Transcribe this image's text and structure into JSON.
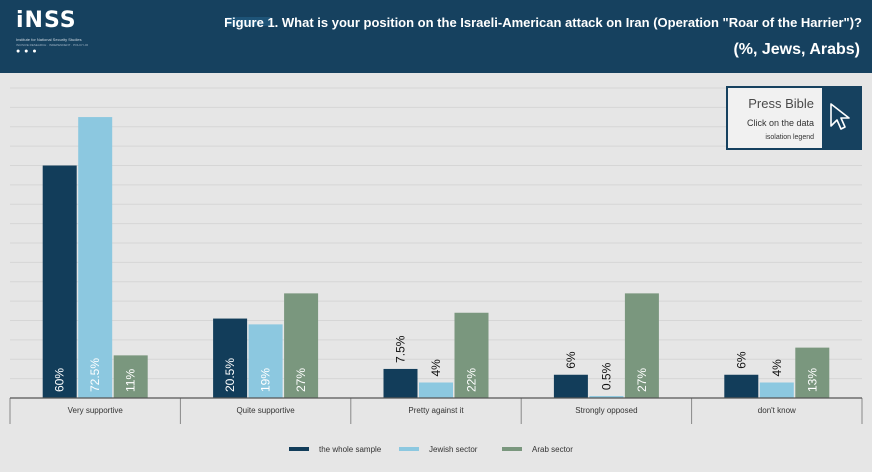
{
  "header": {
    "logo_text": "iNSS",
    "logo_subtitle": "Institute for National Security Studies",
    "logo_tagline": "INCISIVE RESEARCH · INDEPENDENT · POLICY-ORIENTED",
    "logo_icons": "● ● ●",
    "title": "Figure 1. What is your position on the Israeli-American attack on Iran (Operation \"Roar of the Harrier\")?",
    "subtitle": "(%, Jews, Arabs)"
  },
  "press_box": {
    "title": "Press Bible",
    "line1": "Click on the data",
    "line2": "isolation legend"
  },
  "colors": {
    "header_bg": "#16415f",
    "whole_sample": "#123d5a",
    "jewish_sector": "#8cc8e0",
    "arab_sector": "#7a977e"
  },
  "chart_data": {
    "type": "bar",
    "title": "Figure 1. What is your position on the Israeli-American attack on Iran (Operation \"Roar of the Harrier\")?",
    "subtitle": "(%, Jews, Arabs)",
    "categories": [
      "Very supportive",
      "Quite supportive",
      "Pretty against it",
      "Strongly opposed",
      "don't know"
    ],
    "series": [
      {
        "name": "the whole sample",
        "color": "#123d5a",
        "values": [
          60,
          20.5,
          7.5,
          6,
          6
        ],
        "labels": [
          "60%",
          "20.5%",
          "7.5%",
          "6%",
          "6%"
        ]
      },
      {
        "name": "Jewish sector",
        "color": "#8cc8e0",
        "values": [
          72.5,
          19,
          4,
          0.5,
          4
        ],
        "labels": [
          "72.5%",
          "19%",
          "4%",
          "0.5%",
          "4%"
        ]
      },
      {
        "name": "Arab sector",
        "color": "#7a977e",
        "values": [
          11,
          27,
          22,
          27,
          13
        ],
        "labels": [
          "11%",
          "27%",
          "22%",
          "27%",
          "13%"
        ]
      }
    ],
    "ylim": [
      0,
      80
    ],
    "grid": true,
    "legend_position": "bottom-center"
  }
}
